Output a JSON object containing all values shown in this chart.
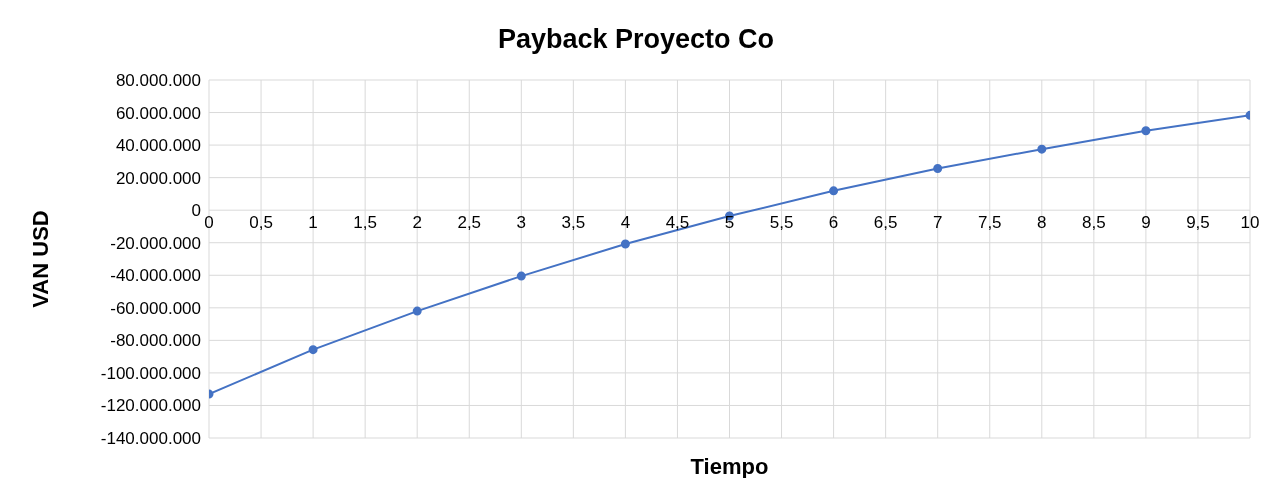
{
  "chart_data": {
    "type": "line",
    "title": "Payback Proyecto Co",
    "xlabel": "Tiempo",
    "ylabel": "VAN USD",
    "x": [
      0,
      1,
      2,
      3,
      4,
      5,
      6,
      7,
      8,
      9,
      10
    ],
    "series": [
      {
        "color": "#4472c4",
        "values": [
          -113000000,
          -85700000,
          -62000000,
          -40500000,
          -20800000,
          -3600000,
          11900000,
          25600000,
          37500000,
          48800000,
          58300000
        ]
      }
    ],
    "xlim": [
      0,
      10
    ],
    "xticks": [
      0,
      {
        "value": 0.5,
        "label": "0,5"
      },
      1,
      {
        "value": 1.5,
        "label": "1,5"
      },
      2,
      {
        "value": 2.5,
        "label": "2,5"
      },
      3,
      {
        "value": 3.5,
        "label": "3,5"
      },
      4,
      {
        "value": 4.5,
        "label": "4,5"
      },
      5,
      {
        "value": 5.5,
        "label": "5,5"
      },
      6,
      {
        "value": 6.5,
        "label": "6,5"
      },
      7,
      {
        "value": 7.5,
        "label": "7,5"
      },
      8,
      {
        "value": 8.5,
        "label": "8,5"
      },
      9,
      {
        "value": 9.5,
        "label": "9,5"
      },
      10
    ],
    "ylim": [
      -140000000,
      80000000
    ],
    "yticks": [
      {
        "value": -140000000,
        "label": "-140.000.000"
      },
      {
        "value": -120000000,
        "label": "-120.000.000"
      },
      {
        "value": -100000000,
        "label": "-100.000.000"
      },
      {
        "value": -80000000,
        "label": "-80.000.000"
      },
      {
        "value": -60000000,
        "label": "-60.000.000"
      },
      {
        "value": -40000000,
        "label": "-40.000.000"
      },
      {
        "value": -20000000,
        "label": "-20.000.000"
      },
      0,
      {
        "value": 20000000,
        "label": "20.000.000"
      },
      {
        "value": 40000000,
        "label": "40.000.000"
      },
      {
        "value": 60000000,
        "label": "60.000.000"
      },
      {
        "value": 80000000,
        "label": "80.000.000"
      }
    ],
    "grid": true,
    "marker": "circle",
    "line_style": "solid",
    "legend": false
  }
}
